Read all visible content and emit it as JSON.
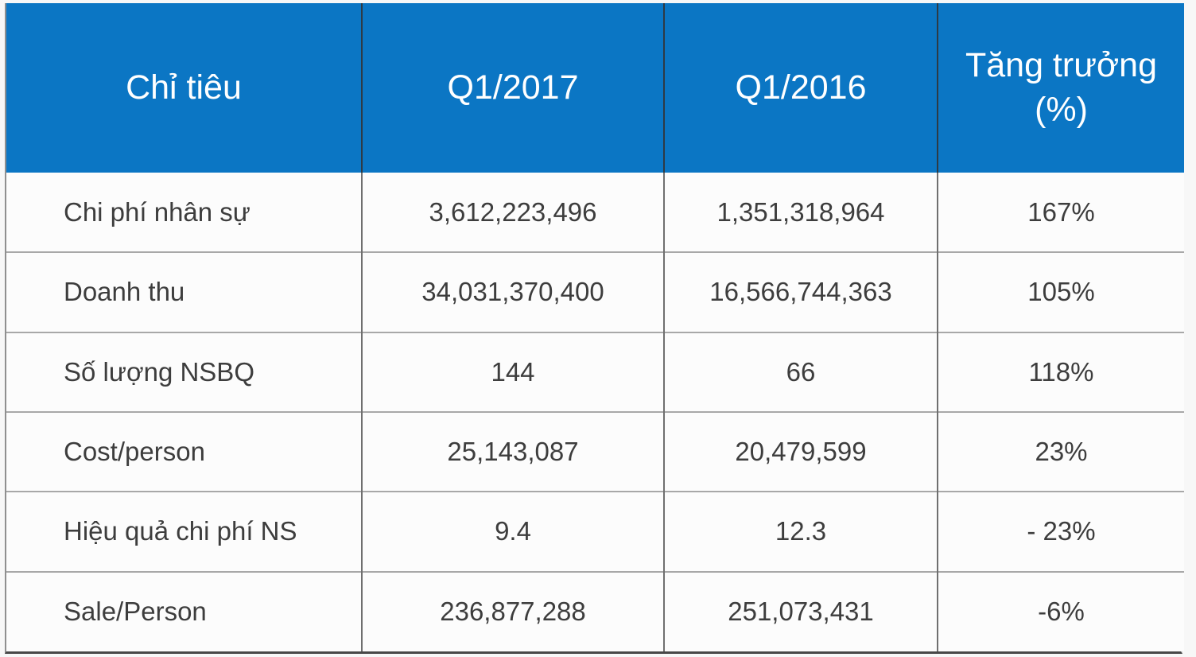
{
  "table": {
    "header_bg": "#0b76c4",
    "header_text_color": "#ffffff",
    "body_text_color": "#3d3d3d",
    "columns": [
      "Chỉ tiêu",
      "Q1/2017",
      "Q1/2016",
      "Tăng trưởng (%)"
    ],
    "rows": [
      {
        "label": "Chi phí nhân sự",
        "q1_2017": "3,612,223,496",
        "q1_2016": "1,351,318,964",
        "growth": "167%"
      },
      {
        "label": "Doanh thu",
        "q1_2017": "34,031,370,400",
        "q1_2016": "16,566,744,363",
        "growth": "105%"
      },
      {
        "label": "Số lượng NSBQ",
        "q1_2017": "144",
        "q1_2016": "66",
        "growth": "118%"
      },
      {
        "label": "Cost/person",
        "q1_2017": "25,143,087",
        "q1_2016": "20,479,599",
        "growth": "23%"
      },
      {
        "label": "Hiệu quả chi phí NS",
        "q1_2017": "9.4",
        "q1_2016": "12.3",
        "growth": "- 23%"
      },
      {
        "label": "Sale/Person",
        "q1_2017": "236,877,288",
        "q1_2016": "251,073,431",
        "growth": "-6%"
      }
    ]
  },
  "chart_data": {
    "type": "table",
    "title": "",
    "columns": [
      "Chỉ tiêu",
      "Q1/2017",
      "Q1/2016",
      "Tăng trưởng (%)"
    ],
    "rows": [
      [
        "Chi phí nhân sự",
        "3,612,223,496",
        "1,351,318,964",
        "167%"
      ],
      [
        "Doanh thu",
        "34,031,370,400",
        "16,566,744,363",
        "105%"
      ],
      [
        "Số lượng NSBQ",
        "144",
        "66",
        "118%"
      ],
      [
        "Cost/person",
        "25,143,087",
        "20,479,599",
        "23%"
      ],
      [
        "Hiệu quả chi phí NS",
        "9.4",
        "12.3",
        "- 23%"
      ],
      [
        "Sale/Person",
        "236,877,288",
        "251,073,431",
        "-6%"
      ]
    ],
    "layout": {
      "header_background": "#0b76c4",
      "header_text_color": "#ffffff",
      "body_text_color": "#3d3d3d",
      "grid": "on"
    }
  }
}
